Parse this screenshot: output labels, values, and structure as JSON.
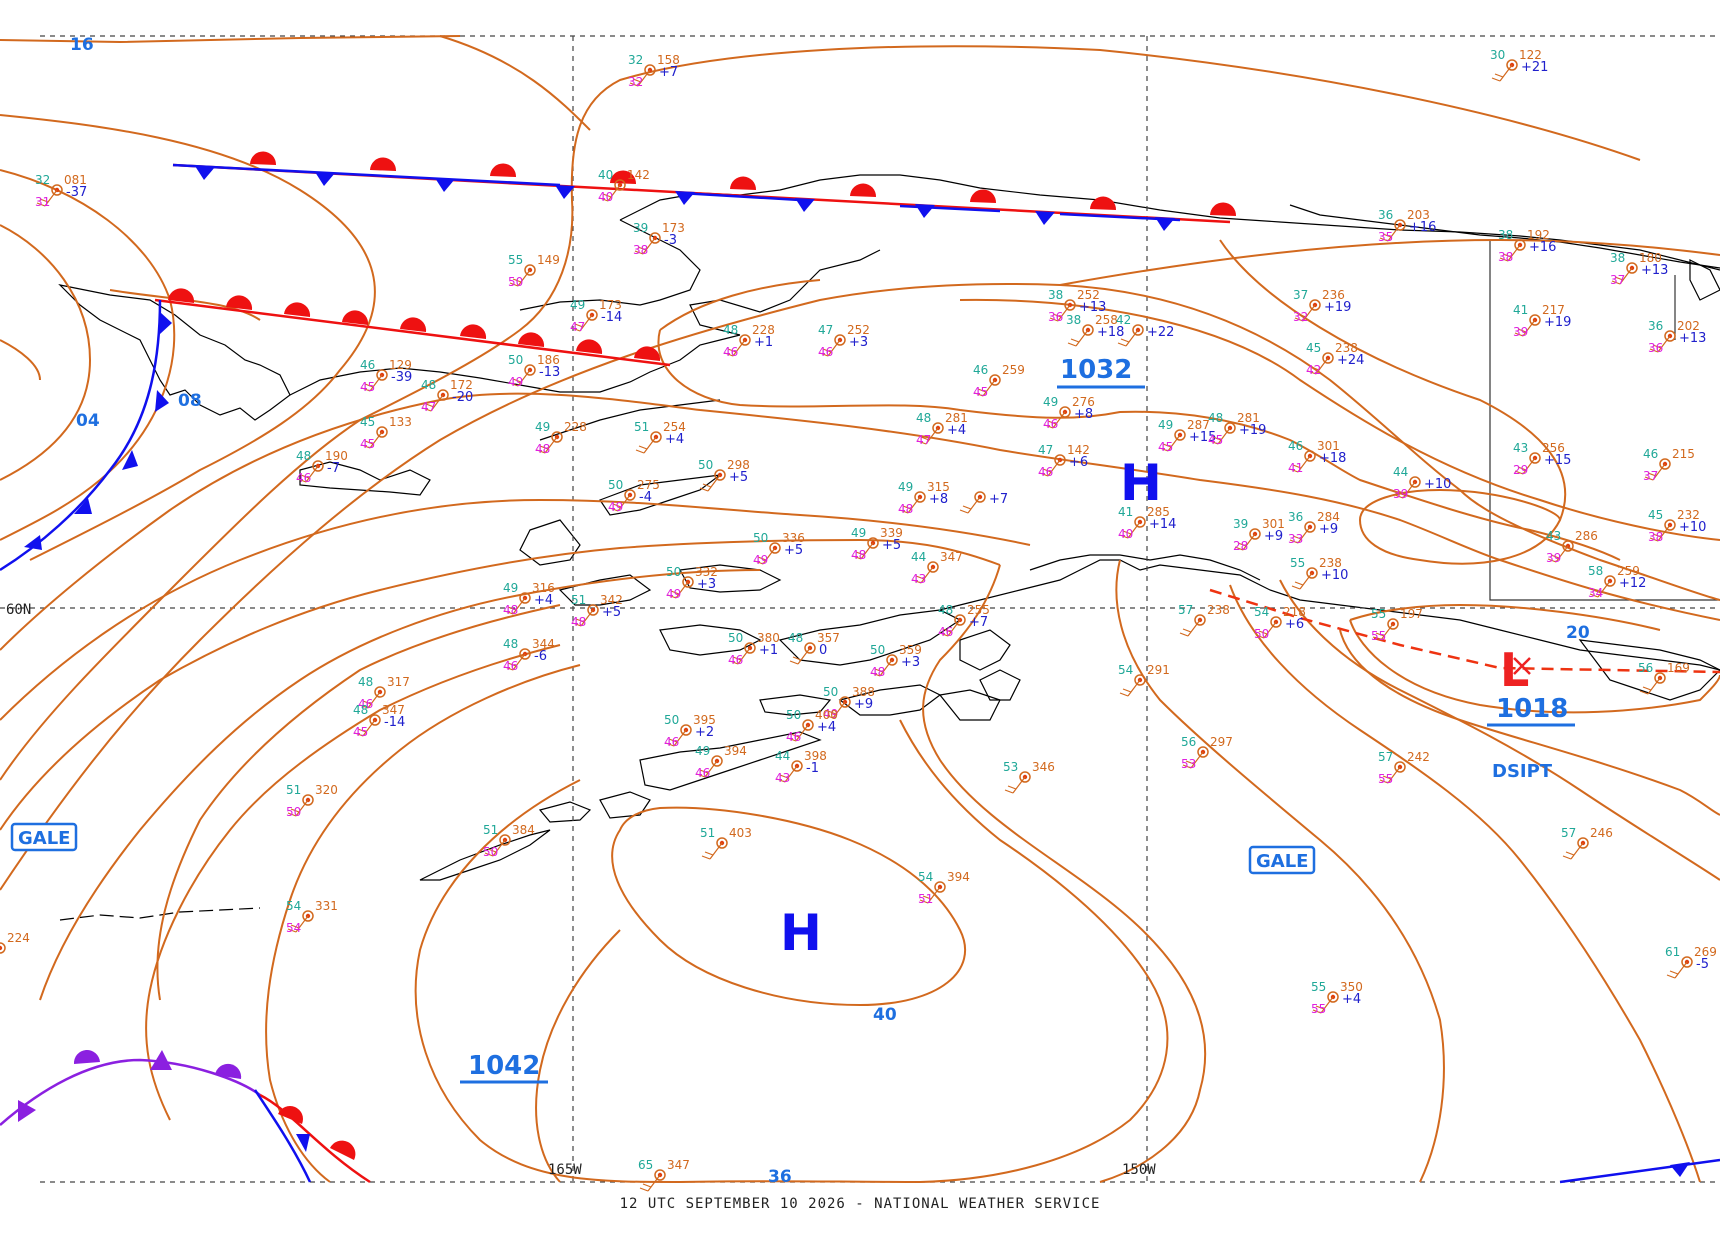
{
  "map": {
    "footer": "12 UTC SEPTEMBER 10 2026 - NATIONAL WEATHER SERVICE",
    "grid_labels": {
      "lat60": "60N",
      "lon165": "165W",
      "lon150": "150W"
    },
    "isobar_labels": [
      "16",
      "04",
      "08",
      "40",
      "36",
      "20"
    ],
    "pressure_labels": [
      "1032",
      "1042",
      "1018"
    ],
    "centers": {
      "high_north": "H",
      "high_south": "H",
      "low": "L"
    },
    "warnings": {
      "gale1": "GALE",
      "gale2": "GALE",
      "dsipt": "DSIPT"
    },
    "colors": {
      "isobar": "#d2691e",
      "cold_front": "#1010ee",
      "warm_front": "#ee1111",
      "occluded": "#8b20e0",
      "label": "#1e6fe0"
    }
  },
  "stations": [
    {
      "t": "32",
      "d": "31",
      "p": "081",
      "c": "-37"
    },
    {
      "t": "32",
      "d": "32",
      "p": "158",
      "c": "+7"
    },
    {
      "t": "30",
      "d": "",
      "p": "122",
      "c": "+21"
    },
    {
      "t": "40",
      "d": "40",
      "p": "142",
      "c": ""
    },
    {
      "t": "39",
      "d": "38",
      "p": "173",
      "c": "-3"
    },
    {
      "t": "55",
      "d": "50",
      "p": "149",
      "c": ""
    },
    {
      "t": "49",
      "d": "47",
      "p": "173",
      "c": "-14"
    },
    {
      "t": "48",
      "d": "46",
      "p": "228",
      "c": "+1"
    },
    {
      "t": "47",
      "d": "46",
      "p": "252",
      "c": "+3"
    },
    {
      "t": "38",
      "d": "36",
      "p": "252",
      "c": "+13"
    },
    {
      "t": "38",
      "d": "",
      "p": "258",
      "c": "+18"
    },
    {
      "t": "42",
      "d": "",
      "p": "",
      "c": "+22"
    },
    {
      "t": "37",
      "d": "32",
      "p": "236",
      "c": "+19"
    },
    {
      "t": "36",
      "d": "35",
      "p": "203",
      "c": "+16"
    },
    {
      "t": "41",
      "d": "39",
      "p": "217",
      "c": "+19"
    },
    {
      "t": "45",
      "d": "42",
      "p": "238",
      "c": "+24"
    },
    {
      "t": "46",
      "d": "45",
      "p": "129",
      "c": "-39"
    },
    {
      "t": "48",
      "d": "47",
      "p": "172",
      "c": "-20"
    },
    {
      "t": "50",
      "d": "49",
      "p": "186",
      "c": "-13"
    },
    {
      "t": "46",
      "d": "45",
      "p": "259",
      "c": ""
    },
    {
      "t": "49",
      "d": "46",
      "p": "276",
      "c": "+8"
    },
    {
      "t": "48",
      "d": "47",
      "p": "281",
      "c": "+4"
    },
    {
      "t": "49",
      "d": "45",
      "p": "287",
      "c": "+15"
    },
    {
      "t": "48",
      "d": "45",
      "p": "281",
      "c": "+19"
    },
    {
      "t": "46",
      "d": "41",
      "p": "301",
      "c": "+18"
    },
    {
      "t": "43",
      "d": "29",
      "p": "256",
      "c": "+15"
    },
    {
      "t": "45",
      "d": "45",
      "p": "133",
      "c": ""
    },
    {
      "t": "48",
      "d": "46",
      "p": "190",
      "c": "-7"
    },
    {
      "t": "49",
      "d": "48",
      "p": "228",
      "c": ""
    },
    {
      "t": "51",
      "d": "",
      "p": "254",
      "c": "+4"
    },
    {
      "t": "50",
      "d": "",
      "p": "298",
      "c": "+5"
    },
    {
      "t": "47",
      "d": "46",
      "p": "142",
      "c": "+6"
    },
    {
      "t": "49",
      "d": "48",
      "p": "315",
      "c": "+8"
    },
    {
      "t": "",
      "d": "",
      "p": "",
      "c": "+7"
    },
    {
      "t": "41",
      "d": "40",
      "p": "285",
      "c": "+14"
    },
    {
      "t": "44",
      "d": "39",
      "p": "",
      "c": "+10"
    },
    {
      "t": "39",
      "d": "28",
      "p": "301",
      "c": "+9"
    },
    {
      "t": "36",
      "d": "33",
      "p": "284",
      "c": "+9"
    },
    {
      "t": "43",
      "d": "39",
      "p": "286",
      "c": ""
    },
    {
      "t": "45",
      "d": "38",
      "p": "232",
      "c": "+10"
    },
    {
      "t": "50",
      "d": "49",
      "p": "275",
      "c": "-4"
    },
    {
      "t": "50",
      "d": "49",
      "p": "336",
      "c": "+5"
    },
    {
      "t": "49",
      "d": "48",
      "p": "339",
      "c": "+5"
    },
    {
      "t": "44",
      "d": "43",
      "p": "347",
      "c": ""
    },
    {
      "t": "50",
      "d": "49",
      "p": "332",
      "c": "+3"
    },
    {
      "t": "49",
      "d": "48",
      "p": "316",
      "c": "+4"
    },
    {
      "t": "51",
      "d": "48",
      "p": "342",
      "c": "+5"
    },
    {
      "t": "48",
      "d": "46",
      "p": "255",
      "c": "+7"
    },
    {
      "t": "50",
      "d": "46",
      "p": "380",
      "c": "+1"
    },
    {
      "t": "48",
      "d": "",
      "p": "357",
      "c": "0"
    },
    {
      "t": "50",
      "d": "48",
      "p": "359",
      "c": "+3"
    },
    {
      "t": "48",
      "d": "46",
      "p": "344",
      "c": "-6"
    },
    {
      "t": "48",
      "d": "46",
      "p": "317",
      "c": ""
    },
    {
      "t": "48",
      "d": "45",
      "p": "347",
      "c": "-14"
    },
    {
      "t": "50",
      "d": "46",
      "p": "395",
      "c": "+2"
    },
    {
      "t": "50",
      "d": "49",
      "p": "388",
      "c": "+9"
    },
    {
      "t": "50",
      "d": "46",
      "p": "400",
      "c": "+4"
    },
    {
      "t": "49",
      "d": "46",
      "p": "394",
      "c": ""
    },
    {
      "t": "44",
      "d": "43",
      "p": "398",
      "c": "-1"
    },
    {
      "t": "51",
      "d": "50",
      "p": "320",
      "c": ""
    },
    {
      "t": "51",
      "d": "50",
      "p": "384",
      "c": ""
    },
    {
      "t": "51",
      "d": "",
      "p": "403",
      "c": ""
    },
    {
      "t": "54",
      "d": "51",
      "p": "394",
      "c": ""
    },
    {
      "t": "53",
      "d": "",
      "p": "346",
      "c": ""
    },
    {
      "t": "54",
      "d": "",
      "p": "291",
      "c": ""
    },
    {
      "t": "56",
      "d": "53",
      "p": "297",
      "c": ""
    },
    {
      "t": "57",
      "d": "55",
      "p": "242",
      "c": ""
    },
    {
      "t": "57",
      "d": "",
      "p": "246",
      "c": ""
    },
    {
      "t": "54",
      "d": "54",
      "p": "331",
      "c": ""
    },
    {
      "t": "55",
      "d": "55",
      "p": "350",
      "c": "+4"
    },
    {
      "t": "61",
      "d": "",
      "p": "269",
      "c": "-5"
    },
    {
      "t": "65",
      "d": "",
      "p": "347",
      "c": ""
    },
    {
      "t": "58",
      "d": "34",
      "p": "259",
      "c": "+12"
    },
    {
      "t": "55",
      "d": "",
      "p": "238",
      "c": "+10"
    },
    {
      "t": "54",
      "d": "50",
      "p": "218",
      "c": "+6"
    },
    {
      "t": "57",
      "d": "",
      "p": "238",
      "c": ""
    },
    {
      "t": "55",
      "d": "55",
      "p": "197",
      "c": ""
    },
    {
      "t": "46",
      "d": "37",
      "p": "215",
      "c": ""
    },
    {
      "t": "36",
      "d": "36",
      "p": "202",
      "c": "+13"
    },
    {
      "t": "38",
      "d": "37",
      "p": "180",
      "c": "+13"
    },
    {
      "t": "38",
      "d": "38",
      "p": "192",
      "c": "+16"
    },
    {
      "t": "56",
      "d": "",
      "p": "169",
      "c": ""
    },
    {
      "t": "",
      "d": "",
      "p": "224",
      "c": ""
    }
  ]
}
